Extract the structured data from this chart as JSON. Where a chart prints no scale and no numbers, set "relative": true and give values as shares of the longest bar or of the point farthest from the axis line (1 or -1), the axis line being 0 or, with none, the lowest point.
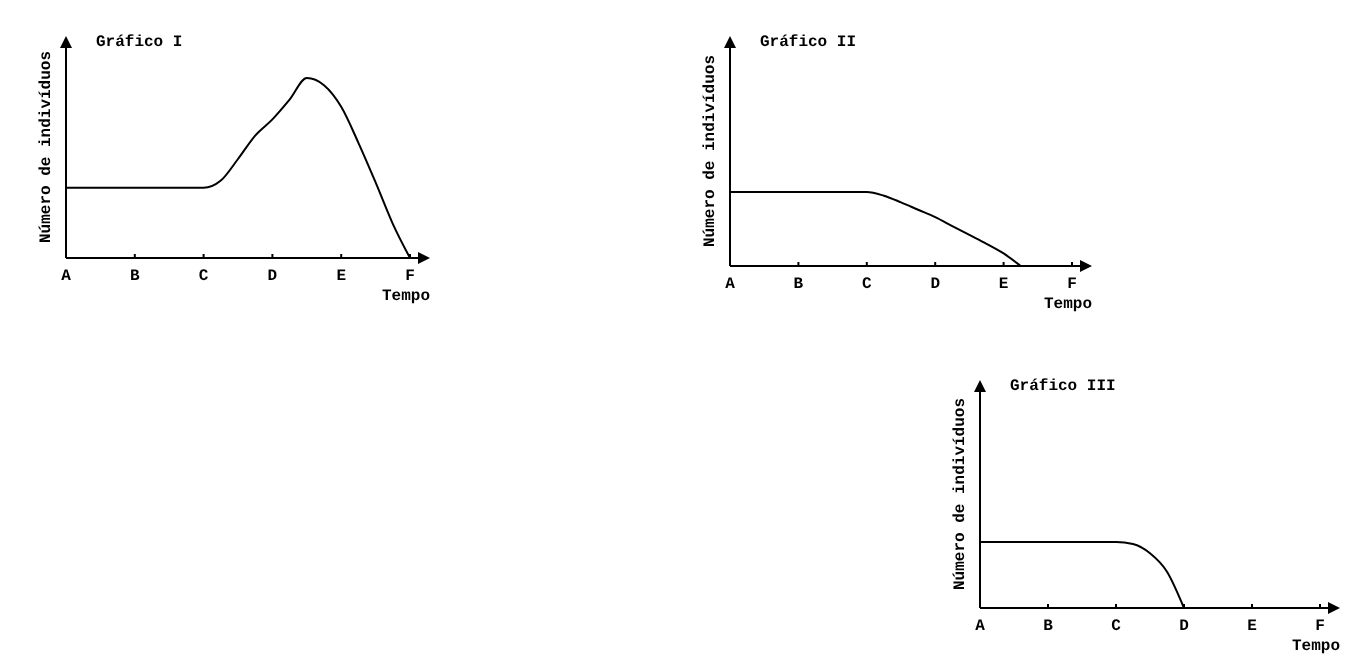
{
  "chart_data": [
    {
      "type": "line",
      "title": "Gráfico I",
      "xlabel": "Tempo",
      "ylabel": "Número de indivíduos",
      "relative": true,
      "categories": [
        "A",
        null,
        null,
        null,
        "B",
        null,
        null,
        null,
        "C",
        null,
        null,
        null,
        "D",
        null,
        null,
        null,
        "E",
        null,
        null,
        null,
        "F"
      ],
      "values": [
        0.39,
        0.39,
        0.39,
        0.39,
        0.39,
        0.39,
        0.39,
        0.39,
        0.39,
        0.43,
        0.55,
        0.68,
        0.77,
        0.88,
        1,
        0.96,
        0.84,
        0.64,
        0.42,
        0.19,
        0
      ],
      "color": "#000000"
    },
    {
      "type": "line",
      "title": "Gráfico II",
      "xlabel": "Tempo",
      "ylabel": "Número de indivíduos",
      "relative": true,
      "categories": [
        "A",
        null,
        null,
        null,
        "B",
        null,
        null,
        null,
        "C",
        null,
        null,
        null,
        "D",
        null,
        null,
        null,
        "E",
        null,
        null,
        null,
        "F"
      ],
      "values": [
        1,
        1,
        1,
        1,
        1,
        1,
        1,
        1,
        1,
        0.95,
        0.86,
        0.76,
        0.66,
        0.54,
        0.42,
        0.3,
        0.17,
        0,
        null,
        null,
        null
      ],
      "color": "#000000"
    },
    {
      "type": "line",
      "title": "Gráfico III",
      "xlabel": "Tempo",
      "ylabel": "Número de indivíduos",
      "relative": true,
      "categories": [
        "A",
        null,
        null,
        null,
        "B",
        null,
        null,
        null,
        "C",
        null,
        null,
        null,
        "D",
        null,
        null,
        null,
        "E",
        null,
        null,
        null,
        "F"
      ],
      "values": [
        1,
        1,
        1,
        1,
        1,
        1,
        1,
        1,
        1,
        0.97,
        0.83,
        0.55,
        0,
        null,
        null,
        null,
        null,
        null,
        null,
        null,
        null
      ],
      "color": "#000000"
    }
  ]
}
